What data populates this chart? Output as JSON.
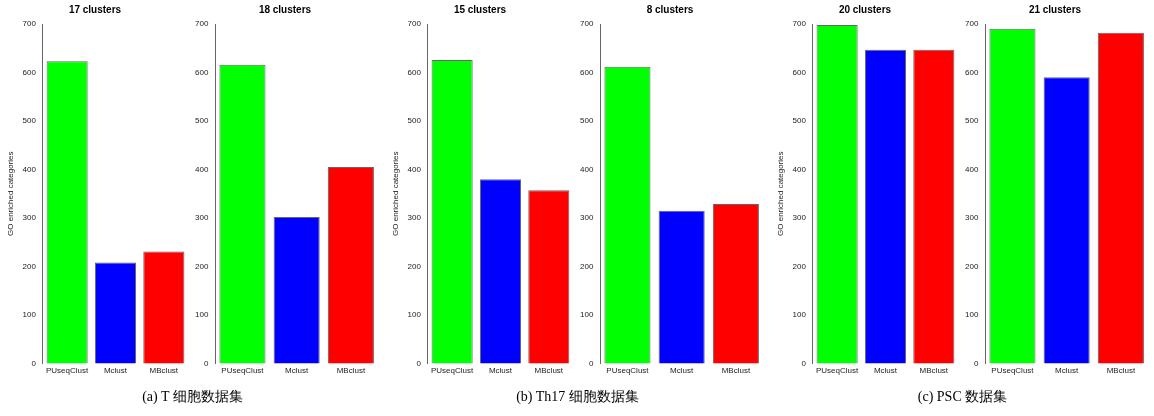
{
  "chart_data": [
    {
      "type": "bar",
      "title": "17 clusters",
      "ylabel": "GO enriched categories",
      "categories": [
        "PUseqClust",
        "Mclust",
        "MBclust"
      ],
      "values": [
        623,
        208,
        231
      ],
      "colors": [
        "#00ff00",
        "#0000ff",
        "#ff0000"
      ],
      "ylim": [
        0,
        700
      ],
      "yticks": [
        0,
        100,
        200,
        300,
        400,
        500,
        600,
        700
      ],
      "grid": false,
      "annotations": [
        "(a) T 细胞数据集"
      ]
    },
    {
      "type": "bar",
      "title": "18 clusters",
      "categories": [
        "PUseqClust",
        "Mclust",
        "MBclust"
      ],
      "values": [
        616,
        302,
        405
      ],
      "colors": [
        "#00ff00",
        "#0000ff",
        "#ff0000"
      ],
      "ylim": [
        0,
        700
      ],
      "yticks": [
        0,
        100,
        200,
        300,
        400,
        500,
        600,
        700
      ],
      "grid": false
    },
    {
      "type": "bar",
      "title": "15 clusters",
      "ylabel": "GO enriched categories",
      "categories": [
        "PUseqClust",
        "Mclust",
        "MBclust"
      ],
      "values": [
        626,
        380,
        357
      ],
      "colors": [
        "#00ff00",
        "#0000ff",
        "#ff0000"
      ],
      "ylim": [
        0,
        700
      ],
      "yticks": [
        0,
        100,
        200,
        300,
        400,
        500,
        600,
        700
      ],
      "grid": false,
      "annotations": [
        "(b) Th17 细胞数据集"
      ]
    },
    {
      "type": "bar",
      "title": "8 clusters",
      "categories": [
        "PUseqClust",
        "Mclust",
        "MBclust"
      ],
      "values": [
        612,
        315,
        329
      ],
      "colors": [
        "#00ff00",
        "#0000ff",
        "#ff0000"
      ],
      "ylim": [
        0,
        700
      ],
      "yticks": [
        0,
        100,
        200,
        300,
        400,
        500,
        600,
        700
      ],
      "grid": false
    },
    {
      "type": "bar",
      "title": "20 clusters",
      "ylabel": "GO enriched categories",
      "categories": [
        "PUseqClust",
        "Mclust",
        "MBclust"
      ],
      "values": [
        698,
        647,
        647
      ],
      "colors": [
        "#00ff00",
        "#0000ff",
        "#ff0000"
      ],
      "ylim": [
        0,
        700
      ],
      "yticks": [
        0,
        100,
        200,
        300,
        400,
        500,
        600,
        700
      ],
      "grid": false,
      "annotations": [
        "(c) PSC 数据集"
      ]
    },
    {
      "type": "bar",
      "title": "21 clusters",
      "categories": [
        "PUseqClust",
        "Mclust",
        "MBclust"
      ],
      "values": [
        690,
        590,
        682
      ],
      "colors": [
        "#00ff00",
        "#0000ff",
        "#ff0000"
      ],
      "ylim": [
        0,
        700
      ],
      "yticks": [
        0,
        100,
        200,
        300,
        400,
        500,
        600,
        700
      ],
      "grid": false
    }
  ]
}
